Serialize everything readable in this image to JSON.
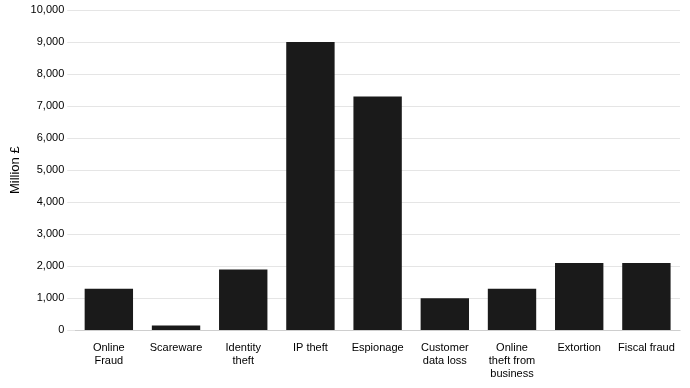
{
  "chart_data": {
    "type": "bar",
    "categories": [
      "Online\nFraud",
      "Scareware",
      "Identity\ntheft",
      "IP theft",
      "Espionage",
      "Customer\ndata loss",
      "Online\ntheft from\nbusiness",
      "Extortion",
      "Fiscal fraud"
    ],
    "values": [
      1300,
      150,
      1900,
      9000,
      7300,
      1000,
      1300,
      2100,
      2100
    ],
    "color": "#1a1a1a",
    "y_label": "Million £",
    "ylim": [
      0,
      10000
    ],
    "yticks": [
      0,
      {
        "value": 1000,
        "label": "1,000"
      },
      {
        "value": 2000,
        "label": "2,000"
      },
      {
        "value": 3000,
        "label": "3,000"
      },
      {
        "value": 4000,
        "label": "4,000"
      },
      {
        "value": 5000,
        "label": "5,000"
      },
      {
        "value": 6000,
        "label": "6,000"
      },
      {
        "value": 7000,
        "label": "7,000"
      },
      {
        "value": 8000,
        "label": "8,000"
      },
      {
        "value": 9000,
        "label": "9,000"
      },
      {
        "value": 10000,
        "label": "10,000"
      }
    ],
    "grid": true
  }
}
